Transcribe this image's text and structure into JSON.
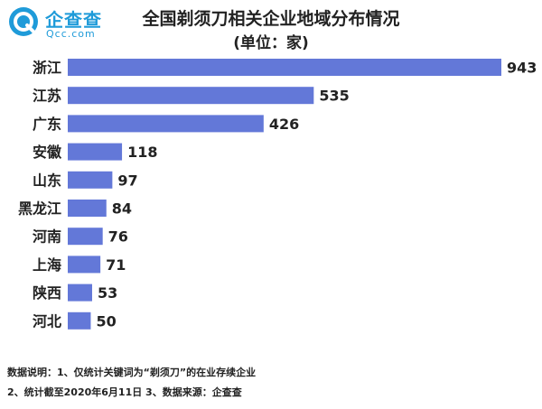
{
  "header": {
    "brand": "企查查",
    "domain": "Qcc.com",
    "title": "全国剃须刀相关企业地域分布情况",
    "subtitle": "(单位：家)"
  },
  "notes": {
    "line1": "数据说明：1、仅统计关键词为“剃须刀”的在业存续企业",
    "line2": "2、统计截至2020年6月11日    3、数据来源：企查查"
  },
  "colors": {
    "bar": "#6378d8",
    "brand": "#1f9bd9"
  },
  "chart_data": {
    "type": "bar",
    "orientation": "horizontal",
    "title": "全国剃须刀相关企业地域分布情况",
    "subtitle": "(单位：家)",
    "categories": [
      "浙江",
      "江苏",
      "广东",
      "安徽",
      "山东",
      "黑龙江",
      "河南",
      "上海",
      "陕西",
      "河北"
    ],
    "values": [
      943,
      535,
      426,
      118,
      97,
      84,
      76,
      71,
      53,
      50
    ],
    "xlim": [
      0,
      943
    ],
    "grid": false,
    "legend": "none"
  }
}
